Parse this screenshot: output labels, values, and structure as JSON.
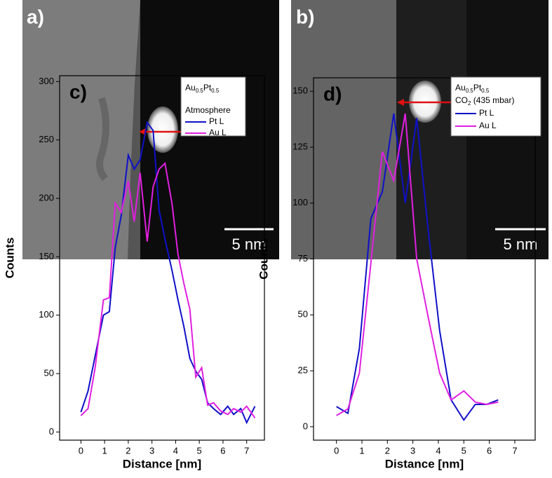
{
  "images": [
    {
      "label": "a)",
      "scale_bar": "5 nm"
    },
    {
      "label": "b)",
      "scale_bar": "5 nm"
    }
  ],
  "chart_data": [
    {
      "type": "line",
      "label": "c)",
      "legend_title": [
        "Au",
        "0.5",
        "Pt",
        "0.5"
      ],
      "legend_subtitle": "Atmosphere",
      "xlabel": "Distance [nm]",
      "ylabel": "Counts",
      "x": [
        0,
        0.3,
        0.6,
        0.95,
        1.2,
        1.45,
        1.7,
        2,
        2.25,
        2.5,
        2.8,
        3.05,
        3.3,
        3.55,
        3.85,
        4.1,
        4.35,
        4.6,
        4.85,
        5.1,
        5.35,
        5.6,
        5.9,
        6.2,
        6.45,
        6.75,
        7,
        7.35
      ],
      "series": [
        {
          "name": "Pt L",
          "color": "#1010c8",
          "values": [
            17,
            35,
            65,
            100,
            103,
            158,
            185,
            237,
            225,
            233,
            265,
            258,
            190,
            165,
            138,
            113,
            90,
            63,
            52,
            45,
            25,
            20,
            15,
            22,
            15,
            20,
            8,
            22
          ]
        },
        {
          "name": "Au L",
          "color": "#e020e0",
          "values": [
            14,
            20,
            55,
            113,
            115,
            196,
            188,
            215,
            180,
            222,
            163,
            210,
            225,
            230,
            195,
            152,
            127,
            105,
            47,
            55,
            23,
            25,
            18,
            15,
            20,
            17,
            22,
            12
          ]
        }
      ],
      "xlim": [
        -0.9,
        7.75
      ],
      "ylim": [
        -7,
        305
      ],
      "xticks": [
        0,
        1,
        2,
        3,
        4,
        5,
        6,
        7
      ],
      "yticks": [
        0,
        50,
        100,
        150,
        200,
        250,
        300
      ]
    },
    {
      "type": "line",
      "label": "d)",
      "legend_title": [
        "Au",
        "0.5",
        "Pt",
        "0.5"
      ],
      "legend_subtitle": [
        "CO",
        "2",
        " (435 mbar)"
      ],
      "xlabel": "Distance [nm]",
      "ylabel": "Counts",
      "x": [
        0,
        0.45,
        0.9,
        1.35,
        1.8,
        2.25,
        2.7,
        3.15,
        3.6,
        4.05,
        4.5,
        5,
        5.45,
        5.9,
        6.35
      ],
      "series": [
        {
          "name": "Pt L",
          "color": "#1010c8",
          "values": [
            9,
            6,
            35,
            93,
            105,
            140,
            100,
            138,
            88,
            43,
            12,
            3,
            10,
            10,
            12
          ]
        },
        {
          "name": "Au L",
          "color": "#e020e0",
          "values": [
            5,
            8,
            24,
            73,
            123,
            110,
            140,
            75,
            49,
            24,
            12,
            16,
            11,
            10,
            11
          ]
        }
      ],
      "xlim": [
        -0.9,
        7.8
      ],
      "ylim": [
        -6,
        156
      ],
      "xticks": [
        0,
        1,
        2,
        3,
        4,
        5,
        6,
        7
      ],
      "yticks": [
        0,
        25,
        50,
        75,
        100,
        125,
        150
      ]
    }
  ]
}
